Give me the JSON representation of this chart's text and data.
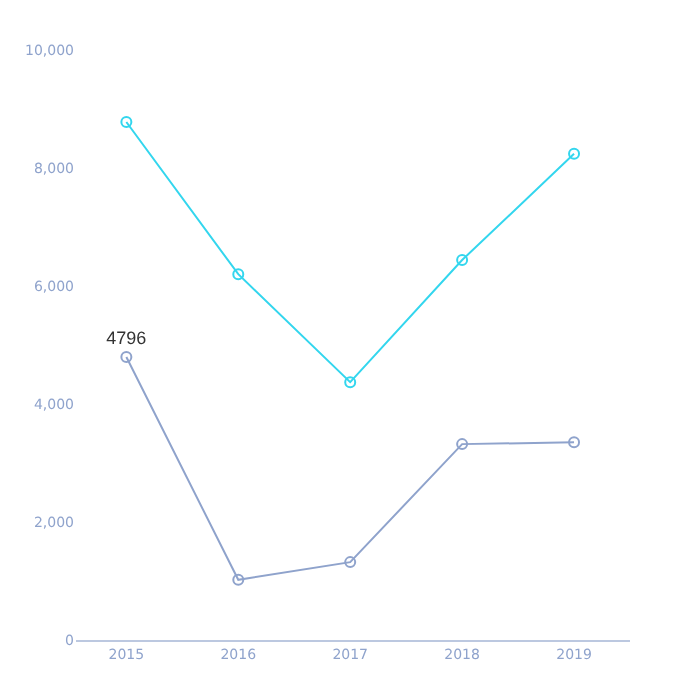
{
  "chart_data": {
    "type": "line",
    "categories": [
      "2015",
      "2016",
      "2017",
      "2018",
      "2019"
    ],
    "series": [
      {
        "color": "#33d6ee",
        "values": [
          8780,
          6200,
          4370,
          6440,
          8240
        ]
      },
      {
        "color": "#8fa3cc",
        "values": [
          4796,
          1020,
          1320,
          3320,
          3350
        ],
        "value_labels": [
          "4796",
          null,
          null,
          null,
          null
        ]
      }
    ],
    "ylim": [
      0,
      10000
    ],
    "yticks": [
      {
        "value": 0,
        "label": "0"
      },
      {
        "value": 2000,
        "label": "2,000"
      },
      {
        "value": 4000,
        "label": "4,000"
      },
      {
        "value": 6000,
        "label": "6,000"
      },
      {
        "value": 8000,
        "label": "8,000"
      },
      {
        "value": 10000,
        "label": "10,000"
      }
    ],
    "grid": false,
    "marker": "circle",
    "line_style": "solid"
  }
}
